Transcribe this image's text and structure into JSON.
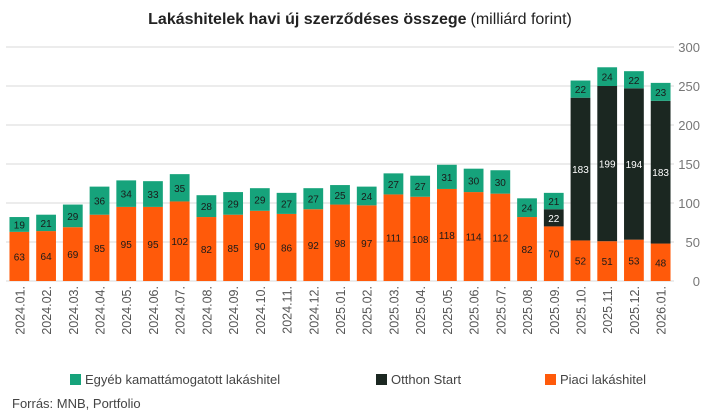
{
  "chart_data": {
    "type": "bar",
    "stacked": true,
    "title": "Lakáshitelek havi új szerződéses összege",
    "subtitle": "(milliárd forint)",
    "source": "Forrás: MNB, Portfolio",
    "ylim": [
      0,
      300
    ],
    "yticks": [
      "0",
      "50",
      "100",
      "150",
      "200",
      "250",
      "300"
    ],
    "grid": true,
    "legend_position": "bottom",
    "categories": [
      "2024.01.",
      "2024.02.",
      "2024.03.",
      "2024.04.",
      "2024.05.",
      "2024.06.",
      "2024.07.",
      "2024.08.",
      "2024.09.",
      "2024.10.",
      "2024.11.",
      "2024.12.",
      "2025.01.",
      "2025.02.",
      "2025.03.",
      "2025.04.",
      "2025.05.",
      "2025.06.",
      "2025.07.",
      "2025.08.",
      "2025.09.",
      "2025.10.",
      "2025.11.",
      "2025.12.",
      "2026.01."
    ],
    "series": [
      {
        "name": "Piaci lakáshitel",
        "color": "#ff5a0a",
        "values": [
          63,
          64,
          69,
          85,
          95,
          95,
          102,
          82,
          85,
          90,
          86,
          92,
          98,
          97,
          111,
          108,
          118,
          114,
          112,
          82,
          70,
          52,
          51,
          53,
          48
        ]
      },
      {
        "name": "Otthon Start",
        "color": "#1b2721",
        "values": [
          null,
          null,
          null,
          null,
          null,
          null,
          null,
          null,
          null,
          null,
          null,
          null,
          null,
          null,
          null,
          null,
          null,
          null,
          null,
          null,
          22,
          183,
          199,
          194,
          183
        ]
      },
      {
        "name": "Egyéb kamattámogatott lakáshitel",
        "color": "#16a37b",
        "values": [
          19,
          21,
          29,
          36,
          34,
          33,
          35,
          28,
          29,
          29,
          27,
          27,
          25,
          24,
          27,
          27,
          31,
          30,
          30,
          24,
          21,
          22,
          24,
          22,
          23
        ]
      }
    ],
    "legend_order": [
      "Egyéb kamattámogatott lakáshitel",
      "Otthon Start",
      "Piaci lakáshitel"
    ]
  }
}
